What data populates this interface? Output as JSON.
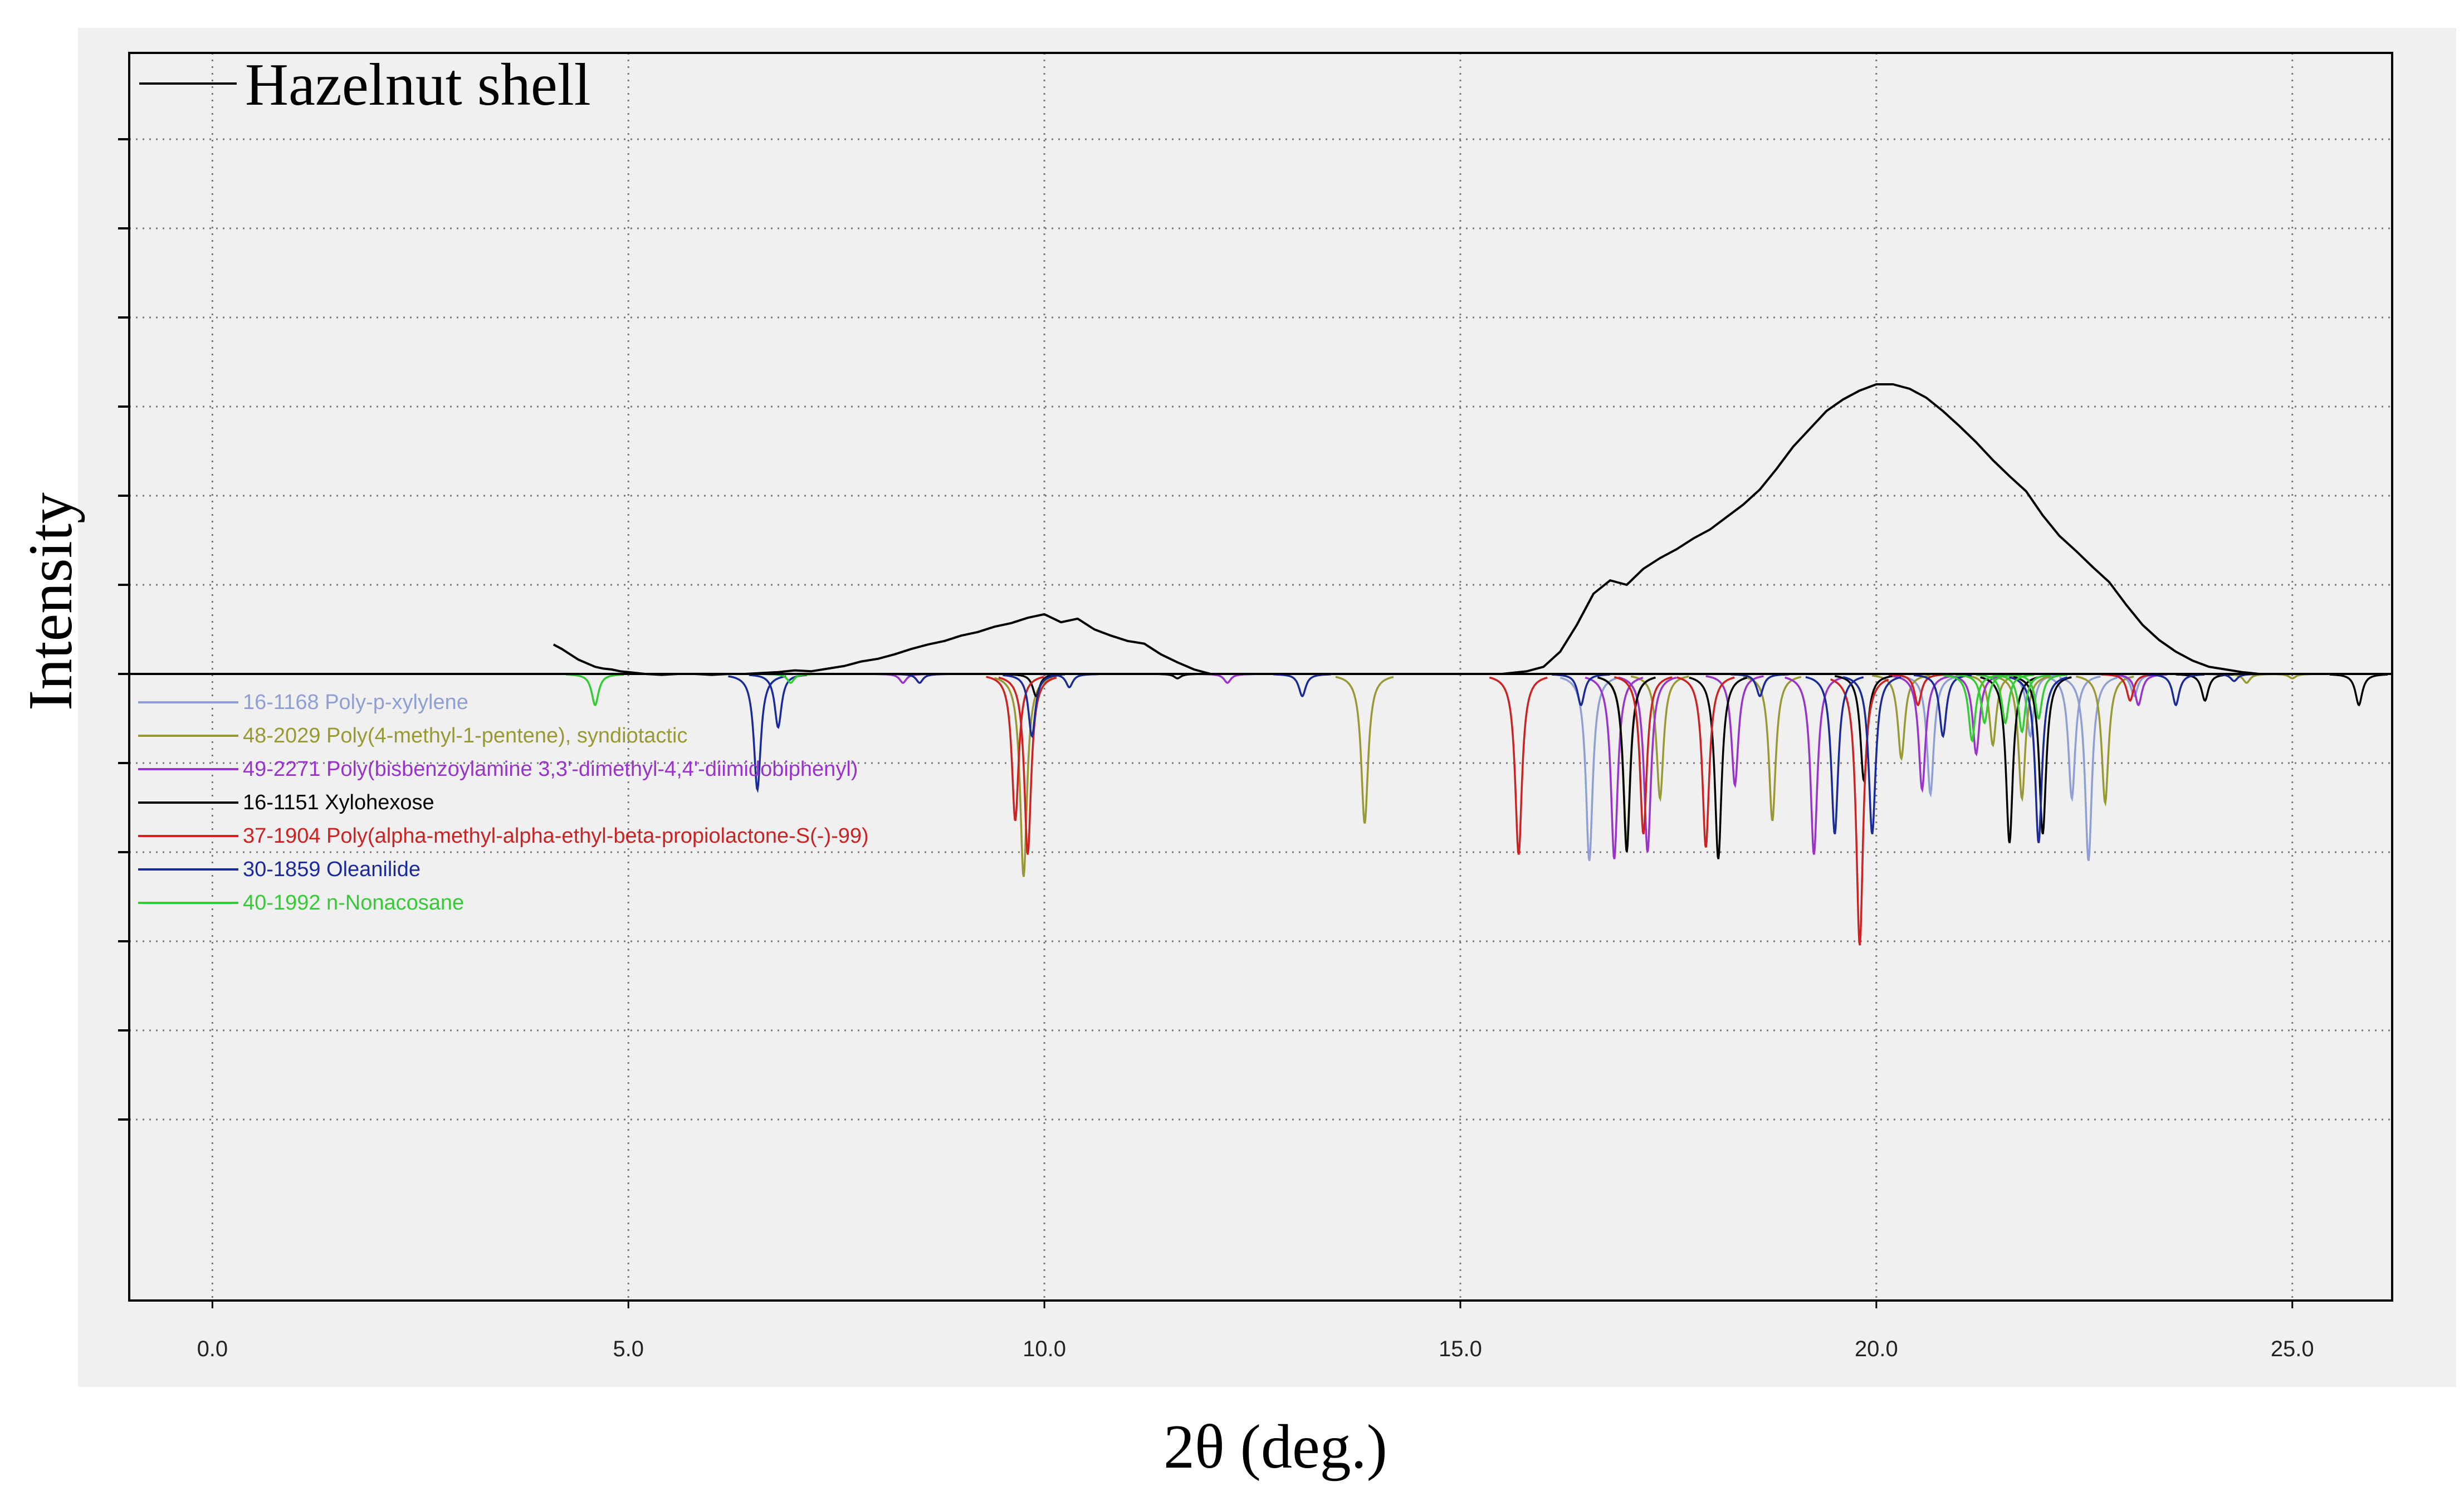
{
  "chart_data": {
    "type": "line",
    "title": "",
    "xlabel": "2θ (deg.)",
    "ylabel": "Intensity",
    "xlim": [
      -1.0,
      26.2
    ],
    "xticks": [
      "0.0",
      "5.0",
      "10.0",
      "15.0",
      "20.0",
      "25.0"
    ],
    "xtick_values": [
      0,
      5,
      10,
      15,
      20,
      25
    ],
    "grid": true,
    "legend_position": "top-left",
    "pattern_legend_position": "left",
    "series": [
      {
        "name": "Hazelnut shell",
        "color": "#000000",
        "x": [
          4.1,
          4.2,
          4.3,
          4.4,
          4.5,
          4.6,
          4.7,
          4.8,
          4.9,
          5.0,
          5.1,
          5.2,
          5.4,
          5.6,
          5.8,
          6.0,
          6.2,
          6.4,
          6.6,
          6.8,
          7.0,
          7.2,
          7.4,
          7.6,
          7.8,
          8.0,
          8.2,
          8.4,
          8.6,
          8.8,
          9.0,
          9.2,
          9.4,
          9.6,
          9.8,
          10.0,
          10.2,
          10.4,
          10.6,
          10.8,
          11.0,
          11.2,
          11.4,
          11.6,
          11.8,
          12.0,
          12.5,
          13.0,
          13.5,
          14.0,
          14.5,
          15.0,
          15.5,
          15.8,
          16.0,
          16.2,
          16.4,
          16.6,
          16.8,
          17.0,
          17.2,
          17.4,
          17.6,
          17.8,
          18.0,
          18.2,
          18.4,
          18.6,
          18.8,
          19.0,
          19.2,
          19.4,
          19.6,
          19.8,
          20.0,
          20.2,
          20.4,
          20.6,
          20.8,
          21.0,
          21.2,
          21.4,
          21.6,
          21.8,
          22.0,
          22.2,
          22.4,
          22.6,
          22.8,
          23.0,
          23.2,
          23.4,
          23.6,
          23.8,
          24.0,
          24.2,
          24.4,
          24.6,
          24.8,
          25.0,
          25.5,
          26.0
        ],
        "values": [
          0.33,
          0.28,
          0.22,
          0.16,
          0.12,
          0.08,
          0.06,
          0.05,
          0.03,
          0.02,
          0.01,
          0.0,
          -0.01,
          0.0,
          0.0,
          -0.01,
          0.0,
          0.0,
          0.01,
          0.02,
          0.04,
          0.03,
          0.06,
          0.09,
          0.14,
          0.17,
          0.22,
          0.28,
          0.33,
          0.37,
          0.43,
          0.47,
          0.53,
          0.57,
          0.63,
          0.67,
          0.58,
          0.62,
          0.5,
          0.43,
          0.37,
          0.34,
          0.22,
          0.13,
          0.05,
          0.0,
          0.0,
          0.0,
          0.0,
          0.0,
          0.0,
          0.0,
          0.0,
          0.03,
          0.08,
          0.25,
          0.55,
          0.9,
          1.05,
          1.0,
          1.18,
          1.3,
          1.4,
          1.52,
          1.62,
          1.76,
          1.9,
          2.07,
          2.3,
          2.55,
          2.75,
          2.95,
          3.08,
          3.18,
          3.25,
          3.25,
          3.2,
          3.1,
          2.95,
          2.78,
          2.6,
          2.4,
          2.22,
          2.05,
          1.78,
          1.55,
          1.38,
          1.2,
          1.03,
          0.78,
          0.55,
          0.38,
          0.25,
          0.15,
          0.08,
          0.05,
          0.02,
          0.0,
          0.0,
          0.0,
          0.0,
          0.0
        ]
      }
    ],
    "reference_patterns": [
      {
        "name": "16-1168 Poly-p-xylylene",
        "color": "#8f9fd4",
        "peaks": [
          [
            16.55,
            -2.1
          ],
          [
            20.65,
            -1.35
          ],
          [
            21.85,
            -0.7
          ],
          [
            22.35,
            -1.4
          ],
          [
            22.55,
            -2.1
          ],
          [
            23.1,
            -0.25
          ]
        ]
      },
      {
        "name": "48-2029 Poly(4-methyl-1-pentene), syndiotactic",
        "color": "#999933",
        "peaks": [
          [
            9.75,
            -2.28
          ],
          [
            13.85,
            -1.68
          ],
          [
            17.0,
            -1.9
          ],
          [
            17.4,
            -1.4
          ],
          [
            18.75,
            -1.65
          ],
          [
            20.3,
            -0.95
          ],
          [
            21.4,
            -0.8
          ],
          [
            21.75,
            -1.4
          ],
          [
            22.75,
            -1.45
          ],
          [
            24.45,
            -0.1
          ],
          [
            25.0,
            -0.05
          ]
        ]
      },
      {
        "name": "49-2271 Poly(bisbenzoylamine 3,3'-dimethyl-4,4'-diimidobiphenyl)",
        "color": "#9933cc",
        "peaks": [
          [
            8.3,
            -0.1
          ],
          [
            12.2,
            -0.1
          ],
          [
            16.85,
            -2.08
          ],
          [
            17.25,
            -2.0
          ],
          [
            18.3,
            -1.25
          ],
          [
            19.25,
            -2.03
          ],
          [
            20.55,
            -1.3
          ],
          [
            21.2,
            -0.9
          ],
          [
            23.15,
            -0.35
          ]
        ]
      },
      {
        "name": "16-1151 Xylohexose",
        "color": "#000000",
        "peaks": [
          [
            9.9,
            -0.25
          ],
          [
            11.6,
            -0.05
          ],
          [
            17.0,
            -2.0
          ],
          [
            18.1,
            -2.08
          ],
          [
            19.85,
            -1.2
          ],
          [
            21.6,
            -1.9
          ],
          [
            22.0,
            -1.8
          ],
          [
            23.95,
            -0.3
          ],
          [
            25.8,
            -0.35
          ]
        ]
      },
      {
        "name": "37-1904 Poly(alpha-methyl-alpha-ethyl-beta-propiolactone-S(-)-99)",
        "color": "#cc2222",
        "peaks": [
          [
            9.65,
            -1.65
          ],
          [
            9.8,
            -2.03
          ],
          [
            15.7,
            -2.03
          ],
          [
            17.2,
            -1.8
          ],
          [
            17.95,
            -1.95
          ],
          [
            19.8,
            -3.05
          ],
          [
            20.5,
            -0.35
          ],
          [
            23.05,
            -0.3
          ]
        ]
      },
      {
        "name": "30-1859 Oleanilide",
        "color": "#1a2a99",
        "peaks": [
          [
            6.55,
            -1.3
          ],
          [
            6.8,
            -0.6
          ],
          [
            8.5,
            -0.1
          ],
          [
            9.85,
            -0.7
          ],
          [
            10.3,
            -0.15
          ],
          [
            13.1,
            -0.25
          ],
          [
            16.45,
            -0.35
          ],
          [
            18.6,
            -0.25
          ],
          [
            19.5,
            -1.8
          ],
          [
            19.95,
            -1.8
          ],
          [
            20.8,
            -0.7
          ],
          [
            21.95,
            -1.9
          ],
          [
            23.6,
            -0.35
          ],
          [
            24.3,
            -0.08
          ]
        ]
      },
      {
        "name": "40-1992 n-Nonacosane",
        "color": "#33cc33",
        "peaks": [
          [
            4.6,
            -0.35
          ],
          [
            6.95,
            -0.1
          ],
          [
            21.15,
            -0.75
          ],
          [
            21.3,
            -0.55
          ],
          [
            21.55,
            -0.55
          ],
          [
            21.75,
            -0.65
          ],
          [
            21.95,
            -0.5
          ]
        ]
      }
    ]
  }
}
